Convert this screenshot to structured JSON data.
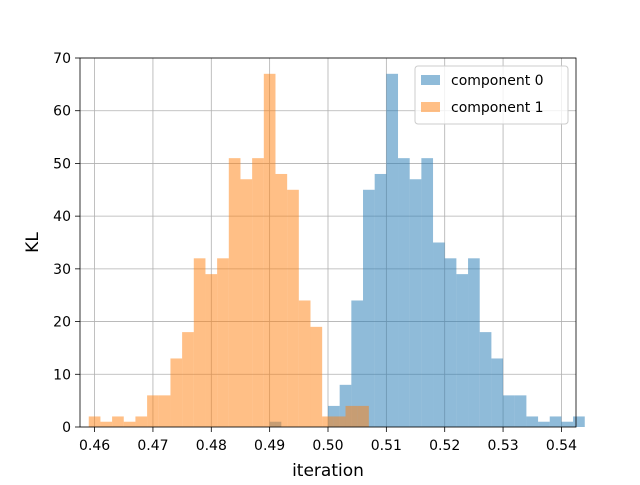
{
  "chart_data": {
    "type": "histogram",
    "title": "",
    "xlabel": "iteration",
    "ylabel": "KL",
    "xlim": [
      0.4575,
      0.5425
    ],
    "ylim": [
      0,
      70
    ],
    "xticks": [
      "0.46",
      "0.47",
      "0.48",
      "0.49",
      "0.50",
      "0.51",
      "0.52",
      "0.53",
      "0.54"
    ],
    "yticks": [
      "0",
      "10",
      "20",
      "30",
      "40",
      "50",
      "60",
      "70"
    ],
    "grid": true,
    "legend_position": "top-right",
    "bin_width": 0.002,
    "series": [
      {
        "name": "component 0",
        "color": "#1f77b4",
        "opacity": 0.5,
        "bin_start": 0.49,
        "counts": [
          1,
          0,
          0,
          0,
          0,
          4,
          8,
          24,
          45,
          48,
          67,
          51,
          47,
          51,
          35,
          32,
          29,
          32,
          18,
          13,
          6,
          6,
          2,
          1,
          2,
          1,
          2
        ]
      },
      {
        "name": "component 1",
        "color": "#ff7f0e",
        "opacity": 0.5,
        "bin_start": 0.459,
        "counts": [
          2,
          1,
          2,
          1,
          2,
          6,
          6,
          13,
          18,
          32,
          29,
          32,
          51,
          47,
          51,
          67,
          48,
          45,
          24,
          19,
          2,
          2,
          4,
          4
        ]
      }
    ]
  }
}
